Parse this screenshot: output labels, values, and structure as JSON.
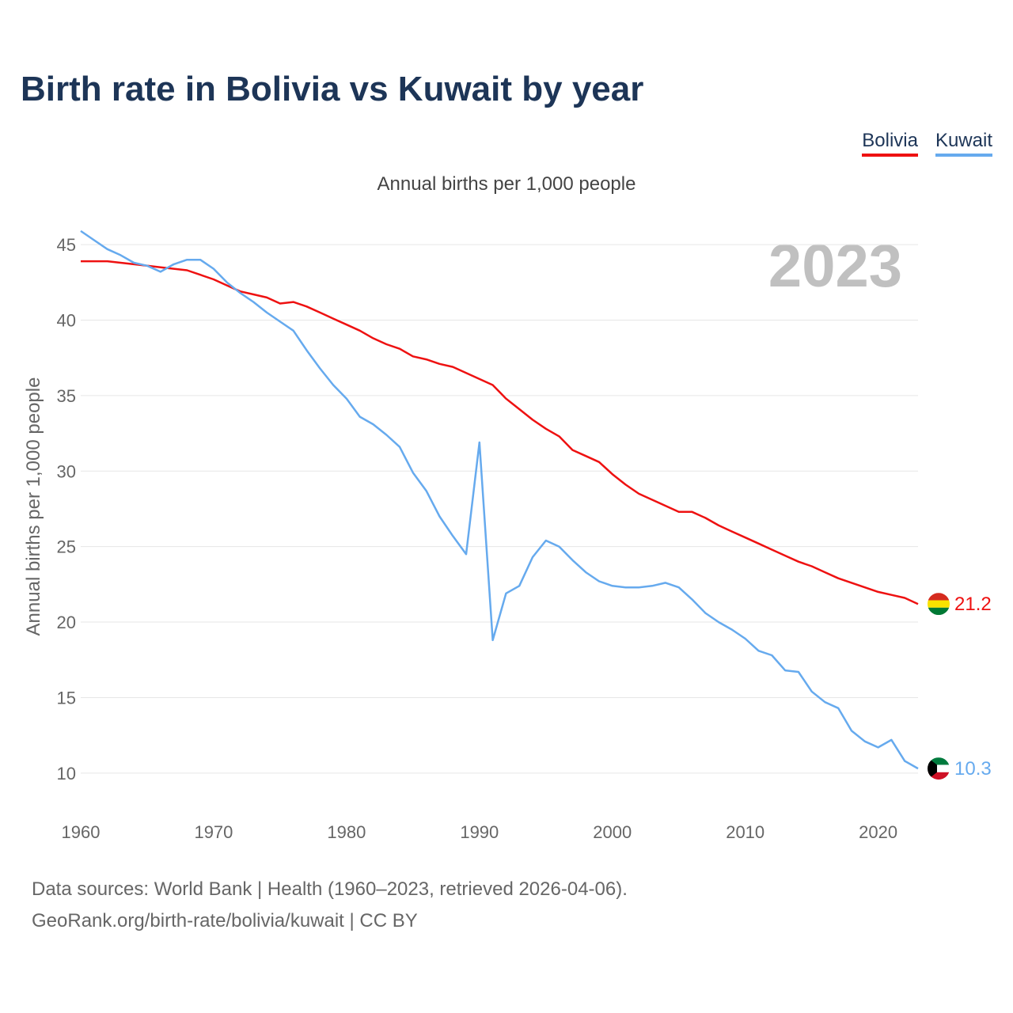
{
  "title": "Birth rate in Bolivia vs Kuwait by year",
  "legend": [
    {
      "name": "Bolivia",
      "color": "#ee1111"
    },
    {
      "name": "Kuwait",
      "color": "#66aaee"
    }
  ],
  "footer": {
    "line1": "Data sources: World Bank | Health (1960–2023, retrieved 2026-04-06).",
    "line2": "GeoRank.org/birth-rate/bolivia/kuwait | CC BY"
  },
  "chart_data": {
    "type": "line",
    "title": "Annual births per 1,000 people",
    "xlabel": "",
    "ylabel": "Annual births per 1,000 people",
    "year_watermark": "2023",
    "xlim": [
      1960,
      2023
    ],
    "ylim": [
      8,
      46
    ],
    "xticks": [
      1960,
      1970,
      1980,
      1990,
      2000,
      2010,
      2020
    ],
    "yticks": [
      10,
      15,
      20,
      25,
      30,
      35,
      40,
      45
    ],
    "grid": true,
    "legend_position": "top-right",
    "x": [
      1960,
      1961,
      1962,
      1963,
      1964,
      1965,
      1966,
      1967,
      1968,
      1969,
      1970,
      1971,
      1972,
      1973,
      1974,
      1975,
      1976,
      1977,
      1978,
      1979,
      1980,
      1981,
      1982,
      1983,
      1984,
      1985,
      1986,
      1987,
      1988,
      1989,
      1990,
      1991,
      1992,
      1993,
      1994,
      1995,
      1996,
      1997,
      1998,
      1999,
      2000,
      2001,
      2002,
      2003,
      2004,
      2005,
      2006,
      2007,
      2008,
      2009,
      2010,
      2011,
      2012,
      2013,
      2014,
      2015,
      2016,
      2017,
      2018,
      2019,
      2020,
      2021,
      2022,
      2023
    ],
    "series": [
      {
        "name": "Bolivia",
        "color": "#ee1111",
        "end_label": "21.2",
        "values": [
          43.9,
          43.9,
          43.9,
          43.8,
          43.7,
          43.6,
          43.5,
          43.4,
          43.3,
          43.0,
          42.7,
          42.3,
          41.9,
          41.7,
          41.5,
          41.1,
          41.2,
          40.9,
          40.5,
          40.1,
          39.7,
          39.3,
          38.8,
          38.4,
          38.1,
          37.6,
          37.4,
          37.1,
          36.9,
          36.5,
          36.1,
          35.7,
          34.8,
          34.1,
          33.4,
          32.8,
          32.3,
          31.4,
          31.0,
          30.6,
          29.8,
          29.1,
          28.5,
          28.1,
          27.7,
          27.3,
          27.3,
          26.9,
          26.4,
          26.0,
          25.6,
          25.2,
          24.8,
          24.4,
          24.0,
          23.7,
          23.3,
          22.9,
          22.6,
          22.3,
          22.0,
          21.8,
          21.6,
          21.2
        ]
      },
      {
        "name": "Kuwait",
        "color": "#66aaee",
        "end_label": "10.3",
        "values": [
          45.9,
          45.3,
          44.7,
          44.3,
          43.8,
          43.6,
          43.2,
          43.7,
          44.0,
          44.0,
          43.4,
          42.5,
          41.8,
          41.2,
          40.5,
          39.9,
          39.3,
          38.0,
          36.8,
          35.7,
          34.8,
          33.6,
          33.1,
          32.4,
          31.6,
          29.9,
          28.7,
          27.0,
          25.7,
          24.5,
          31.9,
          18.8,
          21.9,
          22.4,
          24.3,
          25.4,
          25.0,
          24.1,
          23.3,
          22.7,
          22.4,
          22.3,
          22.3,
          22.4,
          22.6,
          22.3,
          21.5,
          20.6,
          20.0,
          19.5,
          18.9,
          18.1,
          17.8,
          16.8,
          16.7,
          15.4,
          14.7,
          14.3,
          12.8,
          12.1,
          11.7,
          12.2,
          10.8,
          10.3
        ]
      }
    ]
  }
}
